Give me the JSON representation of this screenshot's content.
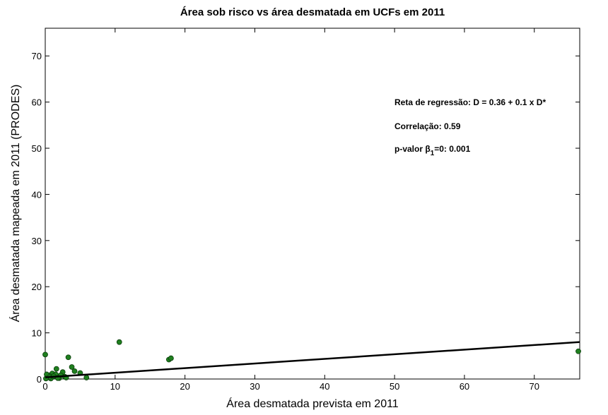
{
  "chart_data": {
    "type": "scatter",
    "title": "Área sob risco vs área desmatada em UCFs em 2011",
    "x_label": "Área desmatada prevista em 2011",
    "y_label": "Área desmatada mapeada em 2011 (PRODES)",
    "xlim": [
      0,
      76.5
    ],
    "ylim": [
      0,
      76
    ],
    "xticks": [
      0,
      10,
      20,
      30,
      40,
      50,
      60,
      70
    ],
    "yticks": [
      0,
      10,
      20,
      30,
      40,
      50,
      60,
      70
    ],
    "color": "#1f7f1f",
    "x": [
      0,
      10.6,
      17.7,
      18,
      76.3,
      3.3,
      3.8,
      4.2,
      5,
      1.6,
      2.8,
      5.9,
      1,
      0.5,
      0.3,
      2,
      1.5,
      2.5,
      0.8,
      1.2,
      0.2,
      2.2,
      3,
      0.6,
      1.8,
      0.1
    ],
    "values": [
      5.3,
      8.0,
      4.2,
      4.5,
      6.0,
      4.7,
      2.6,
      1.7,
      1.3,
      2.2,
      0.5,
      0.3,
      1.2,
      0.8,
      0.3,
      0.2,
      1.0,
      1.5,
      0.1,
      0.6,
      1.0,
      0.8,
      0.3,
      0.4,
      0.2,
      0.1
    ],
    "regression_line": {
      "color": "#000000",
      "x": [
        0,
        76.5
      ],
      "values": [
        0.36,
        8.01
      ]
    },
    "annotations": [
      {
        "text": "Reta de regressão: D = 0.36 + 0.1 x D*"
      },
      {
        "text": "Correlação:  0.59"
      },
      {
        "text": "p-valor β",
        "sub": "1",
        "rest": "=0:  0.001"
      }
    ]
  }
}
